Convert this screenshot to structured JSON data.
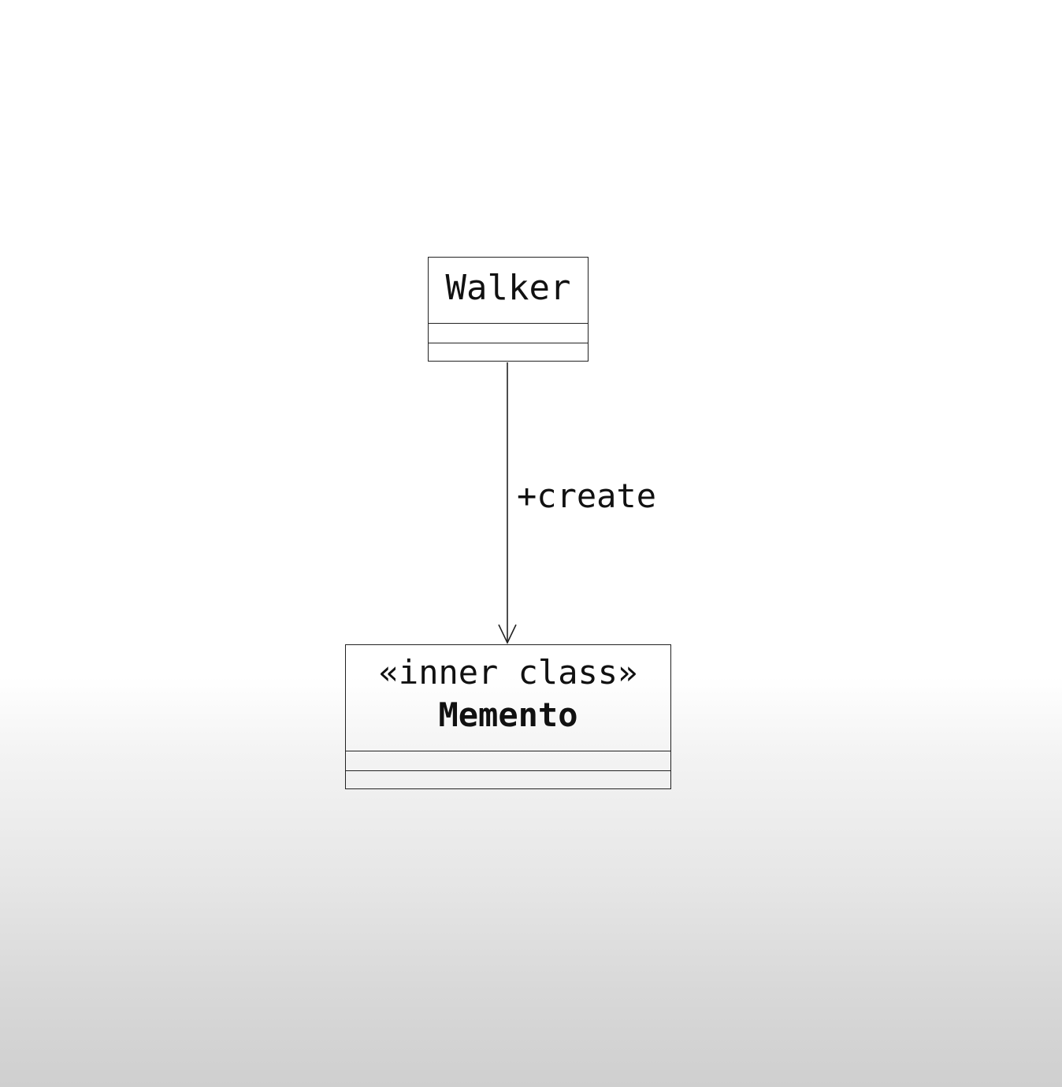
{
  "diagram": {
    "type": "uml-class",
    "classes": [
      {
        "id": "walker",
        "name": "Walker",
        "stereotype": "",
        "attributes": [],
        "operations": []
      },
      {
        "id": "memento",
        "name": "Memento",
        "stereotype": "«inner class»",
        "attributes": [],
        "operations": []
      }
    ],
    "relations": [
      {
        "from": "Walker",
        "to": "Memento",
        "kind": "dependency",
        "arrowhead": "open",
        "label": "+create"
      }
    ]
  },
  "colors": {
    "line": "#222222",
    "text": "#111111",
    "background_top": "#ffffff",
    "background_bottom": "#cfcfcf"
  }
}
